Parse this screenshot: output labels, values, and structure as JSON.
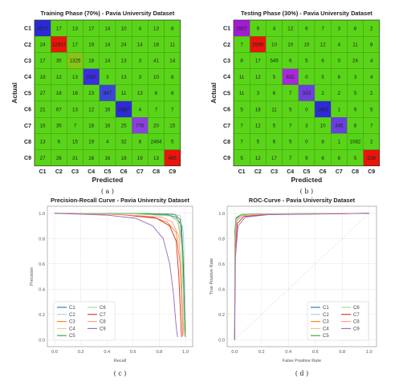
{
  "classes": [
    "C1",
    "C2",
    "C3",
    "C4",
    "C5",
    "C6",
    "C7",
    "C8",
    "C9"
  ],
  "chart_data": [
    {
      "type": "heatmap",
      "title": "Training Phase (70%) - Pavia University Dataset",
      "xlabel": "Predicted",
      "ylabel": "Actual",
      "caption": "( a )",
      "rows": [
        [
          4577,
          17,
          13,
          17,
          14,
          10,
          4,
          13,
          8
        ],
        [
          24,
          12637,
          17,
          19,
          14,
          24,
          14,
          18,
          11
        ],
        [
          17,
          35,
          1325,
          18,
          14,
          13,
          3,
          41,
          14
        ],
        [
          19,
          12,
          13,
          2087,
          3,
          13,
          3,
          10,
          8
        ],
        [
          27,
          18,
          16,
          23,
          847,
          11,
          13,
          6,
          6
        ],
        [
          21,
          67,
          13,
          12,
          16,
          3387,
          4,
          7,
          7
        ],
        [
          16,
          35,
          7,
          18,
          16,
          25,
          776,
          20,
          15
        ],
        [
          13,
          6,
          15,
          19,
          4,
          32,
          8,
          2464,
          5
        ],
        [
          27,
          26,
          31,
          16,
          16,
          18,
          19,
          13,
          485
        ]
      ],
      "diag_colors": [
        "#2a2ad6",
        "#e8160b",
        "#86c416",
        "#3a2ee0",
        "#3b45d8",
        "#2e2ad8",
        "#8b3fe0",
        "#52d417",
        "#e8160b"
      ]
    },
    {
      "type": "heatmap",
      "title": "Testing Phase (30%) - Pavia University Dataset",
      "xlabel": "Predicted",
      "ylabel": "Actual",
      "caption": "( b )",
      "rows": [
        [
          1907,
          9,
          4,
          12,
          6,
          7,
          3,
          8,
          2
        ],
        [
          7,
          5599,
          10,
          10,
          10,
          12,
          4,
          11,
          8
        ],
        [
          8,
          17,
          549,
          6,
          5,
          6,
          0,
          24,
          4
        ],
        [
          11,
          12,
          5,
          832,
          0,
          5,
          6,
          3,
          4
        ],
        [
          11,
          3,
          6,
          7,
          333,
          2,
          2,
          5,
          2
        ],
        [
          5,
          18,
          11,
          5,
          0,
          1461,
          1,
          9,
          5
        ],
        [
          7,
          12,
          5,
          7,
          3,
          10,
          345,
          8,
          7
        ],
        [
          7,
          5,
          6,
          5,
          0,
          8,
          1,
          1082,
          2
        ],
        [
          5,
          12,
          17,
          7,
          9,
          6,
          6,
          5,
          229
        ]
      ],
      "diag_colors": [
        "#a31ad6",
        "#e8160b",
        "#54d417",
        "#a728d8",
        "#6e3ee0",
        "#2e2ad8",
        "#6a3ee0",
        "#52d417",
        "#e8160b"
      ]
    },
    {
      "type": "line",
      "title": "Precision-Recall Curve - Pavia University Dataset",
      "xlabel": "Recall",
      "ylabel": "Precision",
      "caption": "( c )",
      "xlim": [
        0,
        1
      ],
      "ylim": [
        0,
        1
      ],
      "xticks": [
        "0.0",
        "0.2",
        "0.4",
        "0.6",
        "0.8",
        "1.0"
      ],
      "yticks": [
        "0.0",
        "0.2",
        "0.4",
        "0.6",
        "0.8",
        "1.0"
      ],
      "legend": "lower-left",
      "series": [
        {
          "name": "C1",
          "color": "#1f77b4",
          "points": [
            [
              0,
              1
            ],
            [
              0.5,
              0.998
            ],
            [
              0.85,
              0.99
            ],
            [
              0.93,
              0.97
            ],
            [
              0.97,
              0.9
            ],
            [
              0.985,
              0.6
            ],
            [
              0.995,
              0.2
            ],
            [
              1,
              0.05
            ]
          ]
        },
        {
          "name": "C2",
          "color": "#aec7e8",
          "points": [
            [
              0,
              1
            ],
            [
              0.6,
              0.999
            ],
            [
              0.9,
              0.995
            ],
            [
              0.96,
              0.98
            ],
            [
              0.985,
              0.85
            ],
            [
              0.995,
              0.4
            ],
            [
              1,
              0.1
            ]
          ]
        },
        {
          "name": "C3",
          "color": "#ff7f0e",
          "points": [
            [
              0,
              1
            ],
            [
              0.5,
              0.99
            ],
            [
              0.75,
              0.97
            ],
            [
              0.86,
              0.93
            ],
            [
              0.93,
              0.85
            ],
            [
              0.96,
              0.6
            ],
            [
              0.975,
              0.2
            ],
            [
              0.98,
              0.03
            ]
          ]
        },
        {
          "name": "C4",
          "color": "#ffbb78",
          "points": [
            [
              0,
              1
            ],
            [
              0.6,
              0.995
            ],
            [
              0.88,
              0.98
            ],
            [
              0.94,
              0.95
            ],
            [
              0.97,
              0.8
            ],
            [
              0.985,
              0.4
            ],
            [
              0.99,
              0.08
            ]
          ]
        },
        {
          "name": "C5",
          "color": "#2ca02c",
          "points": [
            [
              0,
              1
            ],
            [
              0.7,
              0.998
            ],
            [
              0.92,
              0.99
            ],
            [
              0.96,
              0.95
            ],
            [
              0.98,
              0.7
            ],
            [
              0.99,
              0.3
            ],
            [
              1,
              0.02
            ]
          ]
        },
        {
          "name": "C6",
          "color": "#98df8a",
          "points": [
            [
              0,
              1
            ],
            [
              0.6,
              0.996
            ],
            [
              0.88,
              0.98
            ],
            [
              0.94,
              0.94
            ],
            [
              0.97,
              0.75
            ],
            [
              0.985,
              0.35
            ],
            [
              0.99,
              0.06
            ]
          ]
        },
        {
          "name": "C7",
          "color": "#d62728",
          "points": [
            [
              0,
              1
            ],
            [
              0.5,
              0.99
            ],
            [
              0.78,
              0.96
            ],
            [
              0.88,
              0.9
            ],
            [
              0.93,
              0.78
            ],
            [
              0.95,
              0.5
            ],
            [
              0.965,
              0.15
            ],
            [
              0.97,
              0.02
            ]
          ]
        },
        {
          "name": "C8",
          "color": "#ff9896",
          "points": [
            [
              0,
              1
            ],
            [
              0.5,
              0.99
            ],
            [
              0.82,
              0.97
            ],
            [
              0.9,
              0.93
            ],
            [
              0.95,
              0.82
            ],
            [
              0.97,
              0.5
            ],
            [
              0.98,
              0.15
            ],
            [
              0.99,
              0.03
            ]
          ]
        },
        {
          "name": "C9",
          "color": "#9467bd",
          "points": [
            [
              0,
              1
            ],
            [
              0.4,
              0.985
            ],
            [
              0.62,
              0.96
            ],
            [
              0.75,
              0.9
            ],
            [
              0.83,
              0.8
            ],
            [
              0.88,
              0.6
            ],
            [
              0.91,
              0.35
            ],
            [
              0.93,
              0.1
            ],
            [
              0.94,
              0.02
            ]
          ]
        }
      ]
    },
    {
      "type": "line",
      "title": "ROC-Curve - Pavia University Dataset",
      "xlabel": "False Positive Rate",
      "ylabel": "True Positive Rate",
      "caption": "( d )",
      "xlim": [
        0,
        1
      ],
      "ylim": [
        0,
        1
      ],
      "xticks": [
        "0.0",
        "0.2",
        "0.4",
        "0.6",
        "0.8",
        "1.0"
      ],
      "yticks": [
        "0.0",
        "0.2",
        "0.4",
        "0.6",
        "0.8",
        "1.0"
      ],
      "legend": "lower-right",
      "series": [
        {
          "name": "C1",
          "color": "#1f77b4",
          "points": [
            [
              0,
              0
            ],
            [
              0.003,
              0.8
            ],
            [
              0.01,
              0.96
            ],
            [
              0.05,
              0.985
            ],
            [
              0.2,
              0.993
            ],
            [
              1,
              1
            ]
          ]
        },
        {
          "name": "C2",
          "color": "#aec7e8",
          "points": [
            [
              0,
              0
            ],
            [
              0.002,
              0.85
            ],
            [
              0.01,
              0.97
            ],
            [
              0.05,
              0.99
            ],
            [
              0.2,
              0.996
            ],
            [
              1,
              1
            ]
          ]
        },
        {
          "name": "C3",
          "color": "#ff7f0e",
          "points": [
            [
              0,
              0
            ],
            [
              0.004,
              0.75
            ],
            [
              0.015,
              0.94
            ],
            [
              0.06,
              0.98
            ],
            [
              0.2,
              0.99
            ],
            [
              1,
              1
            ]
          ]
        },
        {
          "name": "C4",
          "color": "#ffbb78",
          "points": [
            [
              0,
              0
            ],
            [
              0.003,
              0.8
            ],
            [
              0.012,
              0.95
            ],
            [
              0.05,
              0.985
            ],
            [
              0.2,
              0.993
            ],
            [
              1,
              1
            ]
          ]
        },
        {
          "name": "C5",
          "color": "#2ca02c",
          "points": [
            [
              0,
              0
            ],
            [
              0.002,
              0.85
            ],
            [
              0.01,
              0.96
            ],
            [
              0.05,
              0.99
            ],
            [
              0.2,
              0.995
            ],
            [
              1,
              1
            ]
          ]
        },
        {
          "name": "C6",
          "color": "#98df8a",
          "points": [
            [
              0,
              0
            ],
            [
              0.003,
              0.8
            ],
            [
              0.012,
              0.95
            ],
            [
              0.05,
              0.985
            ],
            [
              0.2,
              0.994
            ],
            [
              1,
              1
            ]
          ]
        },
        {
          "name": "C7",
          "color": "#d62728",
          "points": [
            [
              0,
              0
            ],
            [
              0.005,
              0.7
            ],
            [
              0.02,
              0.92
            ],
            [
              0.07,
              0.975
            ],
            [
              0.25,
              0.99
            ],
            [
              1,
              1
            ]
          ]
        },
        {
          "name": "C8",
          "color": "#ff9896",
          "points": [
            [
              0,
              0
            ],
            [
              0.004,
              0.75
            ],
            [
              0.015,
              0.94
            ],
            [
              0.06,
              0.98
            ],
            [
              0.2,
              0.992
            ],
            [
              1,
              1
            ]
          ]
        },
        {
          "name": "C9",
          "color": "#9467bd",
          "points": [
            [
              0,
              0
            ],
            [
              0.006,
              0.65
            ],
            [
              0.025,
              0.9
            ],
            [
              0.08,
              0.97
            ],
            [
              0.25,
              0.988
            ],
            [
              1,
              1
            ]
          ]
        }
      ]
    }
  ]
}
